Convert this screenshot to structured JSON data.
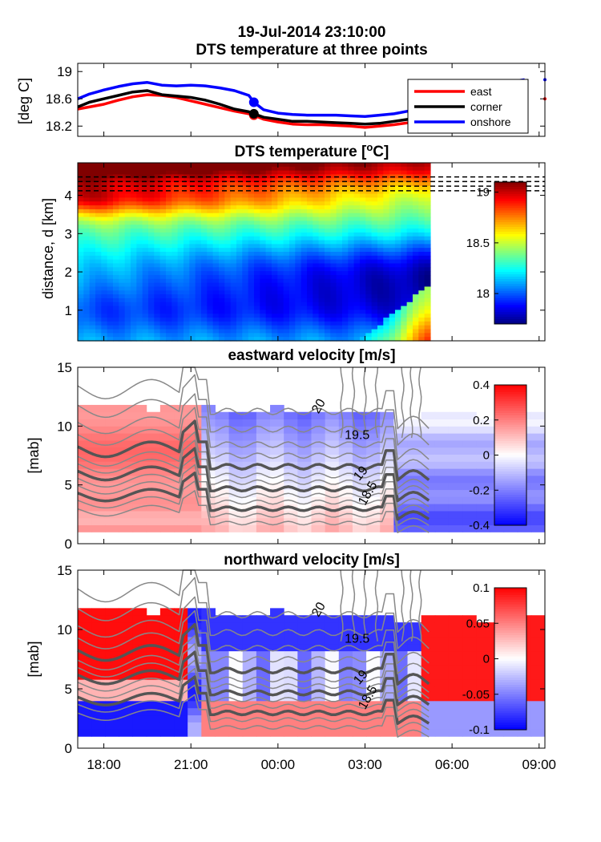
{
  "chart_data": [
    {
      "panel": "timeseries",
      "type": "line",
      "title": "19-Jul-2014 23:10:00",
      "subtitle": "DTS temperature at three points",
      "ylabel": "[deg C]",
      "yticks": [
        18.2,
        18.6,
        19
      ],
      "ylim": [
        18.05,
        19.12
      ],
      "xlim": [
        17.1,
        33.2
      ],
      "legend_position": "top-right",
      "marker_time": 23.17,
      "series": [
        {
          "name": "east",
          "color": "#ff0000",
          "x": [
            17.1,
            17.5,
            18.0,
            18.5,
            19.0,
            19.5,
            20.0,
            20.5,
            21.0,
            21.5,
            22.0,
            22.5,
            23.0,
            23.17,
            23.5,
            24.0,
            24.5,
            25.0,
            25.5,
            26.0,
            26.5,
            27.0,
            27.5,
            28.0,
            28.5,
            29.0,
            29.5
          ],
          "y": [
            18.45,
            18.48,
            18.52,
            18.58,
            18.63,
            18.66,
            18.65,
            18.62,
            18.57,
            18.52,
            18.47,
            18.42,
            18.38,
            18.36,
            18.3,
            18.26,
            18.23,
            18.22,
            18.22,
            18.21,
            18.2,
            18.18,
            18.2,
            18.22,
            18.25,
            18.33,
            18.5
          ]
        },
        {
          "name": "corner",
          "color": "#000000",
          "x": [
            17.1,
            17.5,
            18.0,
            18.5,
            19.0,
            19.5,
            20.0,
            20.5,
            21.0,
            21.5,
            22.0,
            22.5,
            23.0,
            23.17,
            23.5,
            24.0,
            24.5,
            25.0,
            25.5,
            26.0,
            26.5,
            27.0,
            27.5,
            28.0,
            28.5,
            29.0,
            29.5
          ],
          "y": [
            18.48,
            18.55,
            18.6,
            18.65,
            18.7,
            18.72,
            18.66,
            18.64,
            18.62,
            18.58,
            18.52,
            18.45,
            18.41,
            18.38,
            18.33,
            18.3,
            18.27,
            18.27,
            18.26,
            18.25,
            18.24,
            18.23,
            18.24,
            18.27,
            18.3,
            18.38,
            18.5
          ]
        },
        {
          "name": "onshore",
          "color": "#0000ff",
          "x": [
            17.1,
            17.5,
            18.0,
            18.5,
            19.0,
            19.5,
            20.0,
            20.5,
            21.0,
            21.5,
            22.0,
            22.5,
            23.0,
            23.17,
            23.5,
            24.0,
            24.5,
            25.0,
            25.5,
            26.0,
            26.5,
            27.0,
            27.5,
            28.0,
            28.5,
            29.0,
            29.5,
            30.0,
            30.5,
            31.0,
            31.5,
            32.0,
            32.5
          ],
          "y": [
            18.6,
            18.67,
            18.73,
            18.78,
            18.82,
            18.84,
            18.8,
            18.79,
            18.8,
            18.79,
            18.76,
            18.72,
            18.65,
            18.55,
            18.44,
            18.39,
            18.37,
            18.36,
            18.36,
            18.36,
            18.35,
            18.34,
            18.36,
            18.38,
            18.42,
            18.5,
            18.55,
            18.62,
            18.7,
            18.75,
            18.8,
            18.85,
            18.88
          ]
        }
      ]
    },
    {
      "panel": "dts-heatmap",
      "type": "heatmap",
      "title": "DTS temperature [",
      "title_sup": "o",
      "title_end": "C]",
      "ylabel": "distance, d [km]",
      "yticks": [
        1,
        2,
        3,
        4
      ],
      "ylim": [
        0.2,
        4.85
      ],
      "xlim": [
        17.1,
        33.2
      ],
      "data_extent_x": [
        17.1,
        29.25
      ],
      "dashed_lines_km": [
        4.12,
        4.24,
        4.36,
        4.48
      ],
      "colormap": "jet",
      "clim": [
        17.7,
        19.1
      ],
      "colorbar_ticks": [
        18,
        18.5,
        19
      ],
      "colorbar_labels": [
        "18",
        "18.5",
        "19"
      ]
    },
    {
      "panel": "eastward-velocity",
      "type": "heatmap",
      "title": "eastward velocity [m/s]",
      "ylabel": "[mab]",
      "yticks": [
        0,
        5,
        10,
        15
      ],
      "ylim": [
        0,
        15
      ],
      "xlim": [
        17.1,
        33.2
      ],
      "colormap": "red-white-blue",
      "clim": [
        -0.4,
        0.4
      ],
      "colorbar_ticks": [
        -0.4,
        -0.2,
        0,
        0.2,
        0.4
      ],
      "colorbar_labels": [
        "-0.4",
        "-0.2",
        "0",
        "0.2",
        "0.4"
      ],
      "contour_labels": [
        "20",
        "19.5",
        "19",
        "18.5"
      ]
    },
    {
      "panel": "northward-velocity",
      "type": "heatmap",
      "title": "northward velocity [m/s]",
      "ylabel": "[mab]",
      "yticks": [
        0,
        5,
        10,
        15
      ],
      "ylim": [
        0,
        15
      ],
      "xlim": [
        17.1,
        33.2
      ],
      "colormap": "red-white-blue",
      "clim": [
        -0.1,
        0.1
      ],
      "colorbar_ticks": [
        -0.1,
        -0.05,
        0,
        0.05,
        0.1
      ],
      "colorbar_labels": [
        "-0.1",
        "-0.05",
        "0",
        "0.05",
        "0.1"
      ],
      "contour_labels": [
        "20",
        "19.5",
        "19",
        "18.5"
      ]
    }
  ],
  "xaxis": {
    "ticks": [
      18,
      21,
      24,
      27,
      30,
      33
    ],
    "labels": [
      "18:00",
      "21:00",
      "00:00",
      "03:00",
      "06:00",
      "09:00"
    ]
  }
}
